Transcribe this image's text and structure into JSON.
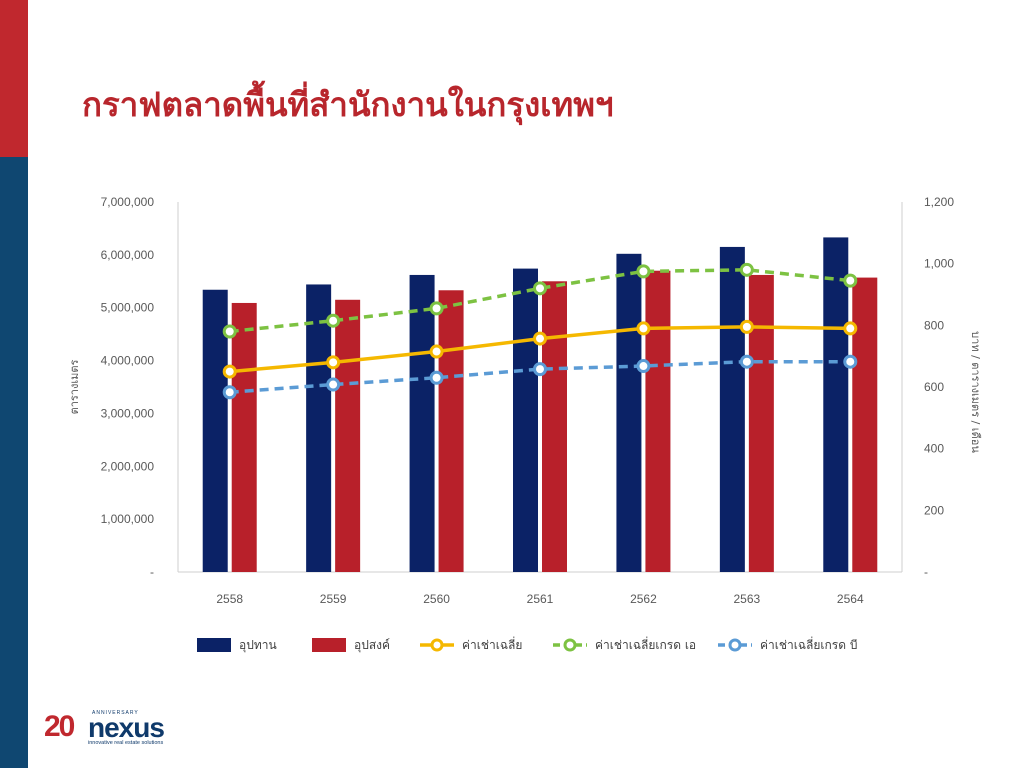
{
  "page": {
    "title": "กราฟตลาดพื้นที่สำนักงานในกรุงเทพฯ"
  },
  "logo": {
    "number": "20",
    "anniversary": "ANNIVERSARY",
    "brand": "nexus",
    "tagline": "innovative real estate solutions"
  },
  "colors": {
    "accent_red": "#c0282e",
    "sidebar_blue": "#0f4771",
    "supply": "#0b2266",
    "demand": "#b8202a",
    "avg_rent": "#f5b800",
    "grade_a": "#7dc242",
    "grade_b": "#5b9bd5"
  },
  "chart_data": {
    "type": "bar",
    "categories": [
      "2558",
      "2559",
      "2560",
      "2561",
      "2562",
      "2563",
      "2564"
    ],
    "ylabel": "ตารางเมตร",
    "y2label": "บาท / ตารางเมตร / เดือน",
    "ylim": [
      0,
      7000000
    ],
    "y2lim": [
      0,
      1200
    ],
    "yticks": [
      "-",
      "1,000,000",
      "2,000,000",
      "3,000,000",
      "4,000,000",
      "5,000,000",
      "6,000,000",
      "7,000,000"
    ],
    "y2ticks": [
      "-",
      "200",
      "400",
      "600",
      "800",
      "1,000",
      "1,200"
    ],
    "legend_position": "bottom",
    "series": [
      {
        "name": "อุปทาน",
        "kind": "bar",
        "axis": "left",
        "color": "#0b2266",
        "values": [
          5340000,
          5440000,
          5620000,
          5740000,
          6020000,
          6150000,
          6330000
        ]
      },
      {
        "name": "อุปสงค์",
        "kind": "bar",
        "axis": "left",
        "color": "#b8202a",
        "values": [
          5090000,
          5150000,
          5330000,
          5500000,
          5700000,
          5620000,
          5570000
        ]
      },
      {
        "name": "ค่าเช่าเฉลี่ย",
        "kind": "line",
        "dash": false,
        "axis": "right",
        "color": "#f5b800",
        "values": [
          650,
          680,
          715,
          757,
          790,
          795,
          790
        ]
      },
      {
        "name": "ค่าเช่าเฉลี่ยเกรด เอ",
        "kind": "line",
        "dash": true,
        "axis": "right",
        "color": "#7dc242",
        "values": [
          780,
          815,
          855,
          920,
          975,
          980,
          945
        ]
      },
      {
        "name": "ค่าเช่าเฉลี่ยเกรด บี",
        "kind": "line",
        "dash": true,
        "axis": "right",
        "color": "#5b9bd5",
        "values": [
          583,
          608,
          630,
          658,
          668,
          682,
          682
        ]
      }
    ]
  }
}
